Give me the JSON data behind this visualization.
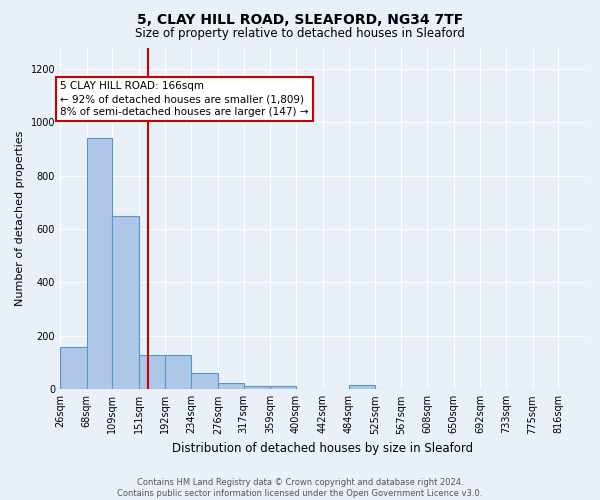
{
  "title1": "5, CLAY HILL ROAD, SLEAFORD, NG34 7TF",
  "title2": "Size of property relative to detached houses in Sleaford",
  "xlabel": "Distribution of detached houses by size in Sleaford",
  "ylabel": "Number of detached properties",
  "bar_edges": [
    26,
    68,
    109,
    151,
    192,
    234,
    276,
    317,
    359,
    400,
    442,
    484,
    525,
    567,
    608,
    650,
    692,
    733,
    775,
    816,
    858
  ],
  "bar_values": [
    160,
    940,
    650,
    130,
    130,
    60,
    25,
    12,
    12,
    0,
    0,
    15,
    0,
    0,
    0,
    0,
    0,
    0,
    0,
    0
  ],
  "bar_color": "#aec6e8",
  "bar_edge_color": "#5599cc",
  "vline_x": 166,
  "vline_color": "#cc0000",
  "annotation_text": "5 CLAY HILL ROAD: 166sqm\n← 92% of detached houses are smaller (1,809)\n8% of semi-detached houses are larger (147) →",
  "annotation_box_color": "#ffffff",
  "annotation_box_edge": "#cc0000",
  "ylim": [
    0,
    1280
  ],
  "yticks": [
    0,
    200,
    400,
    600,
    800,
    1000,
    1200
  ],
  "background_color": "#eaf0f8",
  "grid_color": "#ffffff",
  "footer": "Contains HM Land Registry data © Crown copyright and database right 2024.\nContains public sector information licensed under the Open Government Licence v3.0."
}
